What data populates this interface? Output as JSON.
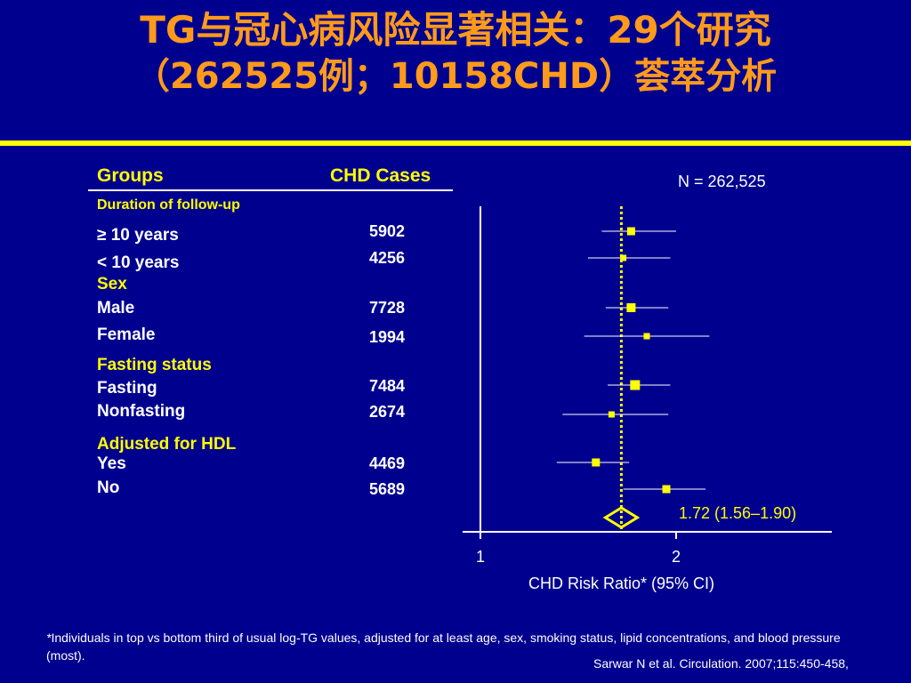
{
  "title": {
    "line1": "TG与冠心病风险显著相关：29个研究",
    "line2": "（262525例；10158CHD）荟萃分析"
  },
  "table": {
    "groups_header": "Groups",
    "cases_header": "CHD Cases",
    "rows": [
      {
        "label": "Duration of follow-up",
        "cases": "",
        "type": "section-small"
      },
      {
        "label": "≥ 10 years",
        "cases": "5902",
        "type": "item"
      },
      {
        "label": "< 10 years",
        "cases": "4256",
        "type": "item"
      },
      {
        "label": "Sex",
        "cases": "",
        "type": "section"
      },
      {
        "label": "Male",
        "cases": "7728",
        "type": "item"
      },
      {
        "label": "Female",
        "cases": "1994",
        "type": "item"
      },
      {
        "label": "Fasting status",
        "cases": "",
        "type": "section"
      },
      {
        "label": "Fasting",
        "cases": "7484",
        "type": "item"
      },
      {
        "label": "Nonfasting",
        "cases": "2674",
        "type": "item"
      },
      {
        "label": "Adjusted for HDL",
        "cases": "",
        "type": "section"
      },
      {
        "label": "Yes",
        "cases": "4469",
        "type": "item"
      },
      {
        "label": "No",
        "cases": "5689",
        "type": "item"
      }
    ]
  },
  "n_label": "N = 262,525",
  "footnote": {
    "symbol": "*",
    "text": "Individuals in top vs bottom third of usual log-TG values, adjusted for at least age, sex, smoking status, lipid concentrations, and blood pressure (most)."
  },
  "source": "Sarwar N et al. Circulation. 2007;115:450-458,",
  "chart_data": {
    "type": "forest",
    "xlabel": "CHD Risk Ratio* (95% CI)",
    "x_ticks": [
      1,
      2
    ],
    "xlim": [
      0.99,
      2.8
    ],
    "log_scale": false,
    "reference_line": 1.72,
    "pooled": {
      "label": "1.72 (1.56–1.90)",
      "value": 1.72,
      "lower": 1.56,
      "upper": 1.9
    },
    "estimates": [
      {
        "group": "≥ 10 years",
        "value": 1.77,
        "lower": 1.62,
        "upper": 2.0
      },
      {
        "group": "< 10 years",
        "value": 1.73,
        "lower": 1.55,
        "upper": 1.97
      },
      {
        "group": "Male",
        "value": 1.77,
        "lower": 1.64,
        "upper": 1.96
      },
      {
        "group": "Female",
        "value": 1.85,
        "lower": 1.53,
        "upper": 2.17
      },
      {
        "group": "Fasting",
        "value": 1.79,
        "lower": 1.65,
        "upper": 1.97
      },
      {
        "group": "Nonfasting",
        "value": 1.67,
        "lower": 1.42,
        "upper": 1.96
      },
      {
        "group": "Yes",
        "value": 1.59,
        "lower": 1.39,
        "upper": 1.76
      },
      {
        "group": "No",
        "value": 1.95,
        "lower": 1.73,
        "upper": 2.15
      }
    ],
    "colors": {
      "point": "#ffff00",
      "ci_line": "#ffffff",
      "reference": "#ffff00",
      "pooled_label": "#ffff00"
    }
  }
}
